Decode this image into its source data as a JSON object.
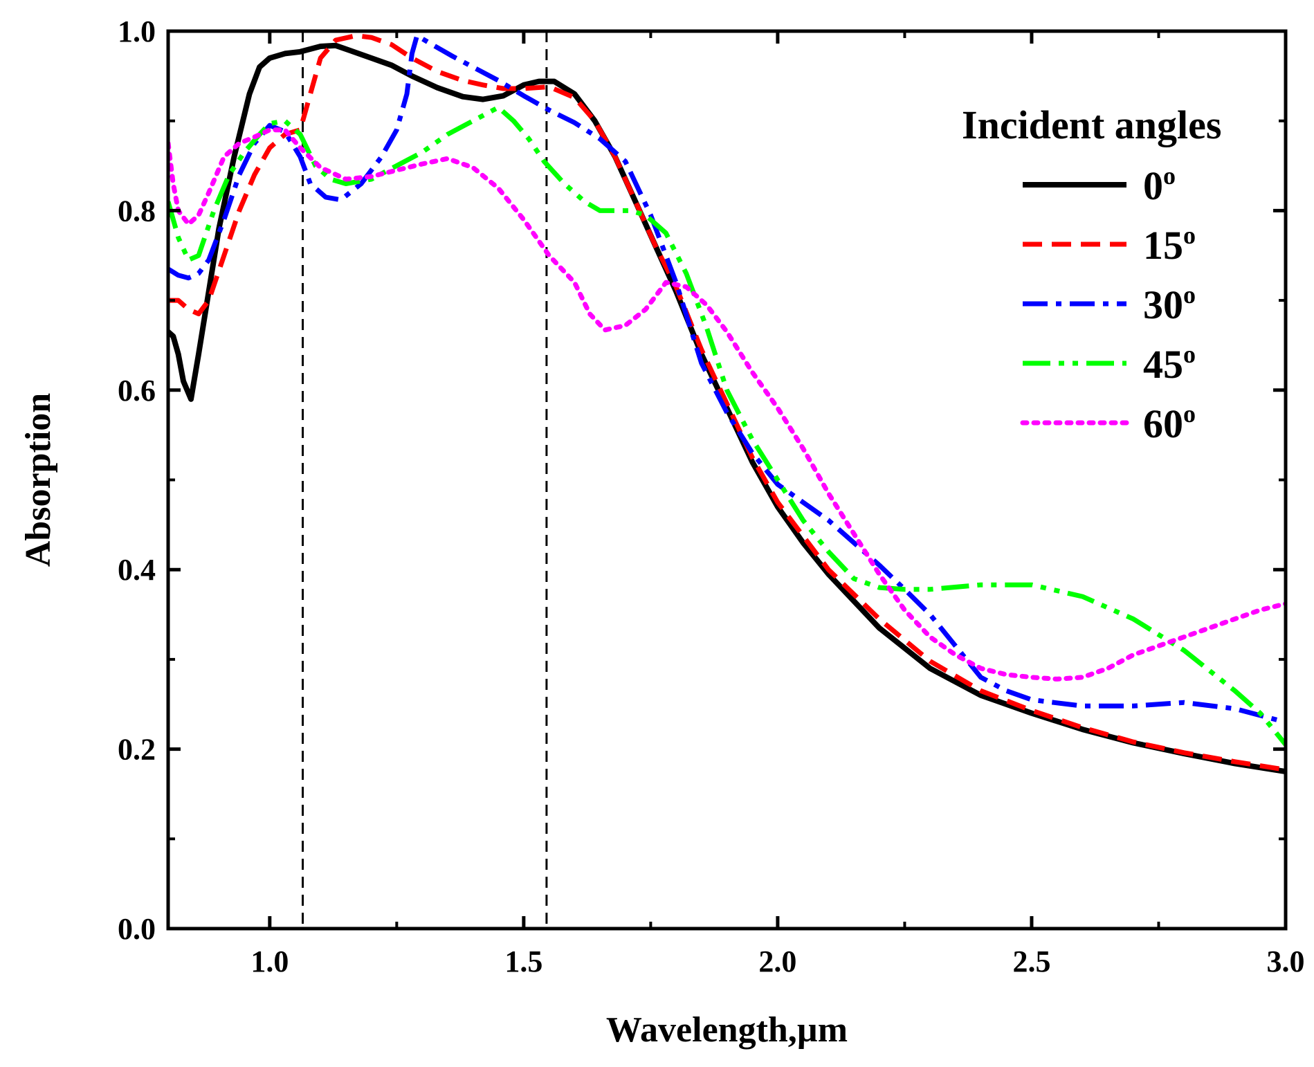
{
  "chart_data": {
    "type": "line",
    "title": "",
    "xlabel": "Wavelength,µm",
    "ylabel": "Absorption",
    "xlim": [
      0.8,
      3.0
    ],
    "ylim": [
      0.0,
      1.0
    ],
    "xticks": [
      1.0,
      1.5,
      2.0,
      2.5,
      3.0
    ],
    "xtick_labels": [
      "1.0",
      "1.5",
      "2.0",
      "2.5",
      "3.0"
    ],
    "yticks": [
      0.0,
      0.2,
      0.4,
      0.6,
      0.8,
      1.0
    ],
    "ytick_labels": [
      "0.0",
      "0.2",
      "0.4",
      "0.6",
      "0.8",
      "1.0"
    ],
    "grid": false,
    "legend": {
      "title": "Incident angles",
      "placement": "top-right",
      "superscript": "o"
    },
    "reference_lines": [
      {
        "x": 1.065,
        "style": "dashed",
        "color": "#000000"
      },
      {
        "x": 1.545,
        "style": "dashed",
        "color": "#000000"
      }
    ],
    "series": [
      {
        "name": "0",
        "color": "#000000",
        "dash": "solid",
        "points": [
          [
            0.8,
            0.665
          ],
          [
            0.81,
            0.66
          ],
          [
            0.82,
            0.64
          ],
          [
            0.83,
            0.61
          ],
          [
            0.845,
            0.59
          ],
          [
            0.86,
            0.64
          ],
          [
            0.88,
            0.71
          ],
          [
            0.9,
            0.78
          ],
          [
            0.93,
            0.86
          ],
          [
            0.96,
            0.93
          ],
          [
            0.98,
            0.96
          ],
          [
            1.0,
            0.97
          ],
          [
            1.03,
            0.975
          ],
          [
            1.06,
            0.977
          ],
          [
            1.1,
            0.983
          ],
          [
            1.13,
            0.984
          ],
          [
            1.16,
            0.978
          ],
          [
            1.2,
            0.97
          ],
          [
            1.24,
            0.962
          ],
          [
            1.28,
            0.95
          ],
          [
            1.33,
            0.937
          ],
          [
            1.38,
            0.927
          ],
          [
            1.42,
            0.924
          ],
          [
            1.46,
            0.928
          ],
          [
            1.5,
            0.94
          ],
          [
            1.53,
            0.944
          ],
          [
            1.56,
            0.944
          ],
          [
            1.6,
            0.93
          ],
          [
            1.64,
            0.9
          ],
          [
            1.68,
            0.86
          ],
          [
            1.72,
            0.81
          ],
          [
            1.76,
            0.76
          ],
          [
            1.8,
            0.71
          ],
          [
            1.85,
            0.64
          ],
          [
            1.9,
            0.58
          ],
          [
            1.95,
            0.52
          ],
          [
            2.0,
            0.47
          ],
          [
            2.05,
            0.43
          ],
          [
            2.1,
            0.395
          ],
          [
            2.2,
            0.335
          ],
          [
            2.3,
            0.29
          ],
          [
            2.4,
            0.26
          ],
          [
            2.5,
            0.24
          ],
          [
            2.6,
            0.222
          ],
          [
            2.7,
            0.207
          ],
          [
            2.8,
            0.195
          ],
          [
            2.9,
            0.184
          ],
          [
            3.0,
            0.175
          ]
        ]
      },
      {
        "name": "15",
        "color": "#ff0000",
        "dash": "dashed",
        "points": [
          [
            0.8,
            0.7
          ],
          [
            0.82,
            0.7
          ],
          [
            0.84,
            0.69
          ],
          [
            0.86,
            0.685
          ],
          [
            0.88,
            0.7
          ],
          [
            0.91,
            0.75
          ],
          [
            0.94,
            0.8
          ],
          [
            0.97,
            0.84
          ],
          [
            1.0,
            0.87
          ],
          [
            1.03,
            0.885
          ],
          [
            1.06,
            0.89
          ],
          [
            1.08,
            0.93
          ],
          [
            1.1,
            0.97
          ],
          [
            1.13,
            0.99
          ],
          [
            1.17,
            0.995
          ],
          [
            1.2,
            0.993
          ],
          [
            1.24,
            0.985
          ],
          [
            1.28,
            0.97
          ],
          [
            1.33,
            0.955
          ],
          [
            1.38,
            0.945
          ],
          [
            1.42,
            0.94
          ],
          [
            1.46,
            0.936
          ],
          [
            1.5,
            0.936
          ],
          [
            1.55,
            0.938
          ],
          [
            1.6,
            0.926
          ],
          [
            1.64,
            0.9
          ],
          [
            1.68,
            0.86
          ],
          [
            1.72,
            0.81
          ],
          [
            1.76,
            0.76
          ],
          [
            1.8,
            0.715
          ],
          [
            1.85,
            0.645
          ],
          [
            1.9,
            0.585
          ],
          [
            1.95,
            0.525
          ],
          [
            2.0,
            0.475
          ],
          [
            2.1,
            0.4
          ],
          [
            2.2,
            0.345
          ],
          [
            2.3,
            0.298
          ],
          [
            2.4,
            0.265
          ],
          [
            2.5,
            0.243
          ],
          [
            2.6,
            0.224
          ],
          [
            2.7,
            0.208
          ],
          [
            2.8,
            0.196
          ],
          [
            2.9,
            0.186
          ],
          [
            3.0,
            0.177
          ]
        ]
      },
      {
        "name": "30",
        "color": "#0000ff",
        "dash": "dashdot",
        "points": [
          [
            0.8,
            0.735
          ],
          [
            0.82,
            0.728
          ],
          [
            0.84,
            0.725
          ],
          [
            0.86,
            0.73
          ],
          [
            0.88,
            0.745
          ],
          [
            0.91,
            0.79
          ],
          [
            0.94,
            0.84
          ],
          [
            0.97,
            0.875
          ],
          [
            1.0,
            0.895
          ],
          [
            1.03,
            0.888
          ],
          [
            1.06,
            0.86
          ],
          [
            1.08,
            0.83
          ],
          [
            1.11,
            0.815
          ],
          [
            1.14,
            0.812
          ],
          [
            1.18,
            0.83
          ],
          [
            1.22,
            0.86
          ],
          [
            1.25,
            0.89
          ],
          [
            1.27,
            0.93
          ],
          [
            1.28,
            0.975
          ],
          [
            1.29,
            0.995
          ],
          [
            1.32,
            0.985
          ],
          [
            1.36,
            0.972
          ],
          [
            1.4,
            0.96
          ],
          [
            1.45,
            0.945
          ],
          [
            1.5,
            0.928
          ],
          [
            1.55,
            0.912
          ],
          [
            1.6,
            0.898
          ],
          [
            1.65,
            0.88
          ],
          [
            1.7,
            0.855
          ],
          [
            1.75,
            0.795
          ],
          [
            1.8,
            0.72
          ],
          [
            1.85,
            0.63
          ],
          [
            1.9,
            0.575
          ],
          [
            1.95,
            0.53
          ],
          [
            2.0,
            0.495
          ],
          [
            2.1,
            0.455
          ],
          [
            2.2,
            0.405
          ],
          [
            2.25,
            0.378
          ],
          [
            2.3,
            0.35
          ],
          [
            2.35,
            0.315
          ],
          [
            2.4,
            0.28
          ],
          [
            2.45,
            0.265
          ],
          [
            2.5,
            0.255
          ],
          [
            2.6,
            0.248
          ],
          [
            2.7,
            0.248
          ],
          [
            2.8,
            0.252
          ],
          [
            2.9,
            0.245
          ],
          [
            3.0,
            0.23
          ]
        ]
      },
      {
        "name": "45",
        "color": "#00ff00",
        "dash": "dashdotdot",
        "points": [
          [
            0.8,
            0.81
          ],
          [
            0.82,
            0.77
          ],
          [
            0.84,
            0.745
          ],
          [
            0.86,
            0.75
          ],
          [
            0.89,
            0.8
          ],
          [
            0.92,
            0.84
          ],
          [
            0.95,
            0.865
          ],
          [
            0.98,
            0.885
          ],
          [
            1.0,
            0.897
          ],
          [
            1.03,
            0.9
          ],
          [
            1.06,
            0.885
          ],
          [
            1.09,
            0.85
          ],
          [
            1.12,
            0.835
          ],
          [
            1.15,
            0.83
          ],
          [
            1.2,
            0.835
          ],
          [
            1.25,
            0.85
          ],
          [
            1.3,
            0.865
          ],
          [
            1.35,
            0.885
          ],
          [
            1.4,
            0.9
          ],
          [
            1.45,
            0.915
          ],
          [
            1.48,
            0.9
          ],
          [
            1.51,
            0.88
          ],
          [
            1.54,
            0.855
          ],
          [
            1.58,
            0.83
          ],
          [
            1.62,
            0.81
          ],
          [
            1.65,
            0.8
          ],
          [
            1.68,
            0.8
          ],
          [
            1.71,
            0.8
          ],
          [
            1.74,
            0.795
          ],
          [
            1.78,
            0.775
          ],
          [
            1.82,
            0.73
          ],
          [
            1.86,
            0.67
          ],
          [
            1.9,
            0.6
          ],
          [
            1.95,
            0.545
          ],
          [
            2.0,
            0.5
          ],
          [
            2.05,
            0.455
          ],
          [
            2.1,
            0.42
          ],
          [
            2.15,
            0.39
          ],
          [
            2.2,
            0.38
          ],
          [
            2.25,
            0.378
          ],
          [
            2.3,
            0.378
          ],
          [
            2.4,
            0.383
          ],
          [
            2.5,
            0.383
          ],
          [
            2.6,
            0.37
          ],
          [
            2.7,
            0.345
          ],
          [
            2.8,
            0.31
          ],
          [
            2.9,
            0.265
          ],
          [
            2.95,
            0.24
          ],
          [
            3.0,
            0.205
          ]
        ]
      },
      {
        "name": "60",
        "color": "#ff00ff",
        "dash": "dotted",
        "points": [
          [
            0.8,
            0.875
          ],
          [
            0.81,
            0.83
          ],
          [
            0.82,
            0.8
          ],
          [
            0.84,
            0.785
          ],
          [
            0.86,
            0.795
          ],
          [
            0.88,
            0.82
          ],
          [
            0.91,
            0.86
          ],
          [
            0.94,
            0.875
          ],
          [
            0.97,
            0.882
          ],
          [
            1.0,
            0.89
          ],
          [
            1.03,
            0.89
          ],
          [
            1.06,
            0.87
          ],
          [
            1.1,
            0.848
          ],
          [
            1.15,
            0.835
          ],
          [
            1.2,
            0.838
          ],
          [
            1.25,
            0.845
          ],
          [
            1.3,
            0.852
          ],
          [
            1.35,
            0.858
          ],
          [
            1.4,
            0.848
          ],
          [
            1.45,
            0.825
          ],
          [
            1.5,
            0.79
          ],
          [
            1.55,
            0.75
          ],
          [
            1.6,
            0.72
          ],
          [
            1.63,
            0.685
          ],
          [
            1.66,
            0.667
          ],
          [
            1.7,
            0.672
          ],
          [
            1.74,
            0.69
          ],
          [
            1.78,
            0.72
          ],
          [
            1.82,
            0.715
          ],
          [
            1.86,
            0.695
          ],
          [
            1.9,
            0.665
          ],
          [
            1.95,
            0.62
          ],
          [
            2.0,
            0.58
          ],
          [
            2.05,
            0.535
          ],
          [
            2.1,
            0.485
          ],
          [
            2.15,
            0.44
          ],
          [
            2.2,
            0.395
          ],
          [
            2.25,
            0.355
          ],
          [
            2.3,
            0.325
          ],
          [
            2.35,
            0.305
          ],
          [
            2.4,
            0.29
          ],
          [
            2.45,
            0.283
          ],
          [
            2.5,
            0.28
          ],
          [
            2.55,
            0.278
          ],
          [
            2.6,
            0.28
          ],
          [
            2.65,
            0.29
          ],
          [
            2.7,
            0.305
          ],
          [
            2.75,
            0.315
          ],
          [
            2.8,
            0.325
          ],
          [
            2.85,
            0.335
          ],
          [
            2.9,
            0.345
          ],
          [
            2.95,
            0.355
          ],
          [
            3.0,
            0.362
          ]
        ]
      }
    ]
  }
}
